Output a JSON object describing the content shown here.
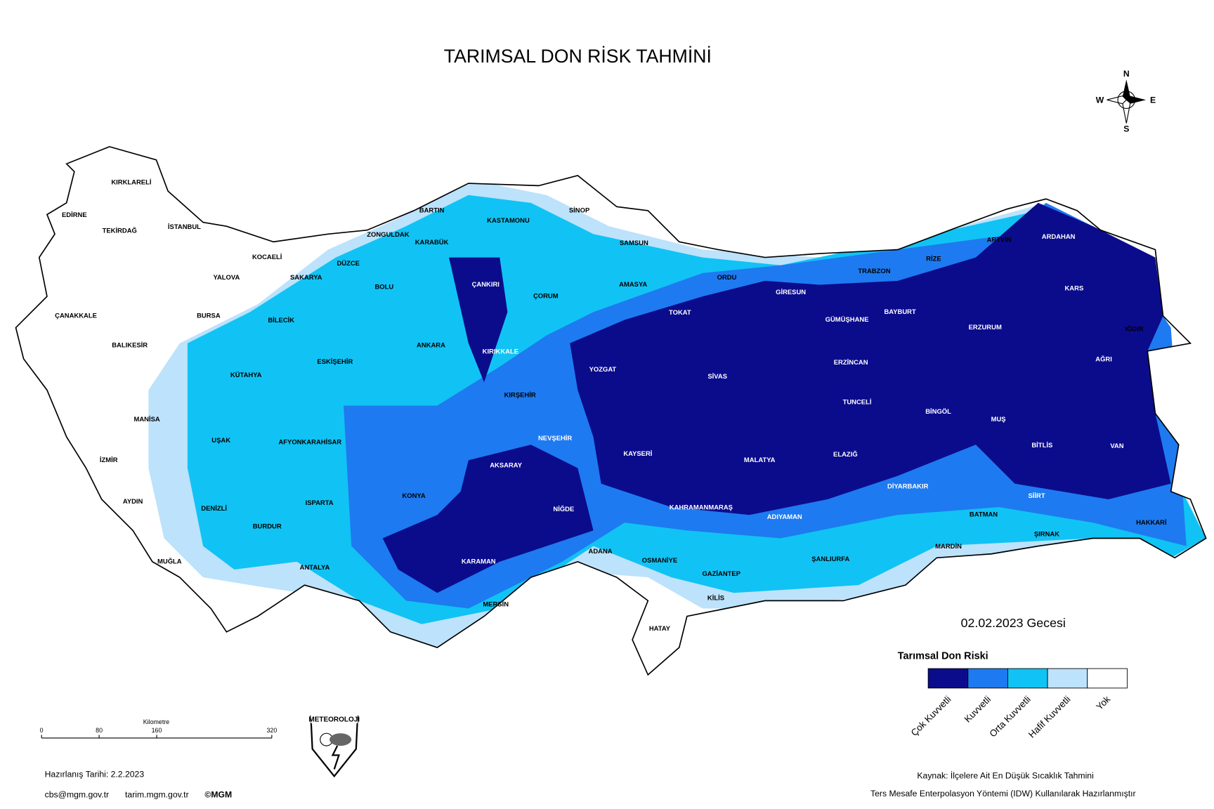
{
  "title": "TARIMSAL DON RİSK TAHMİNİ",
  "compass": {
    "n": "N",
    "w": "W",
    "e": "E",
    "s": "S"
  },
  "provinces": [
    "KIRKLARELİ",
    "EDİRNE",
    "TEKİRDAĞ",
    "İSTANBUL",
    "KOCAELİ",
    "YALOVA",
    "SAKARYA",
    "DÜZCE",
    "ZONGULDAK",
    "BARTIN",
    "KARABÜK",
    "KASTAMONU",
    "SİNOP",
    "SAMSUN",
    "ÇANAKKALE",
    "BALIKESİR",
    "BURSA",
    "BİLECİK",
    "BOLU",
    "ÇANKIRI",
    "ÇORUM",
    "AMASYA",
    "TOKAT",
    "ORDU",
    "GİRESUN",
    "TRABZON",
    "RİZE",
    "ARTVİN",
    "ARDAHAN",
    "KARS",
    "IĞDIR",
    "AĞRI",
    "ERZURUM",
    "BAYBURT",
    "GÜMÜŞHANE",
    "ERZİNCAN",
    "SİVAS",
    "YOZGAT",
    "KIRIKKALE",
    "ANKARA",
    "ESKİŞEHİR",
    "KÜTAHYA",
    "MANİSA",
    "UŞAK",
    "AFYONKARAHİSAR",
    "KIRŞEHİR",
    "NEVŞEHİR",
    "KAYSERİ",
    "TUNCELİ",
    "BİNGÖL",
    "MUŞ",
    "BİTLİS",
    "VAN",
    "MALATYA",
    "ELAZIĞ",
    "AKSARAY",
    "İZMİR",
    "KONYA",
    "NİĞDE",
    "KAHRAMANMARAŞ",
    "DİYARBAKIR",
    "SİİRT",
    "HAKKARİ",
    "BATMAN",
    "ADIYAMAN",
    "ISPARTA",
    "DENİZLİ",
    "AYDIN",
    "BURDUR",
    "ŞIRNAK",
    "MARDİN",
    "ŞANLIURFA",
    "ADANA",
    "OSMANİYE",
    "MUĞLA",
    "ANTALYA",
    "KARAMAN",
    "GAZİANTEP",
    "KİLİS",
    "MERSİN",
    "HATAY"
  ],
  "date_label": "02.02.2023 Gecesi",
  "legend": {
    "title": "Tarımsal Don Riski",
    "items": [
      {
        "label": "Çok Kuvvetli",
        "color": "#0b0c8c"
      },
      {
        "label": "Kuvvetli",
        "color": "#1e7af0"
      },
      {
        "label": "Orta Kuvvetli",
        "color": "#10c3f4"
      },
      {
        "label": "Hafif Kuvvetli",
        "color": "#bde2fb"
      },
      {
        "label": "Yok",
        "color": "#ffffff"
      }
    ]
  },
  "scale_bar": {
    "unit": "Kilometre",
    "ticks": [
      0,
      80,
      160,
      320
    ]
  },
  "logo": "METEOROLOJI",
  "footer": {
    "prepared": "Hazırlanış Tarihi:  2.2.2023",
    "email": "cbs@mgm.gov.tr",
    "site": "tarim.mgm.gov.tr",
    "copyright": "©MGM",
    "source": "Kaynak: İlçelere Ait En Düşük Sıcaklık Tahmini",
    "method": "Ters Mesafe Enterpolasyon Yöntemi (IDW) Kullanılarak Hazırlanmıştır"
  }
}
